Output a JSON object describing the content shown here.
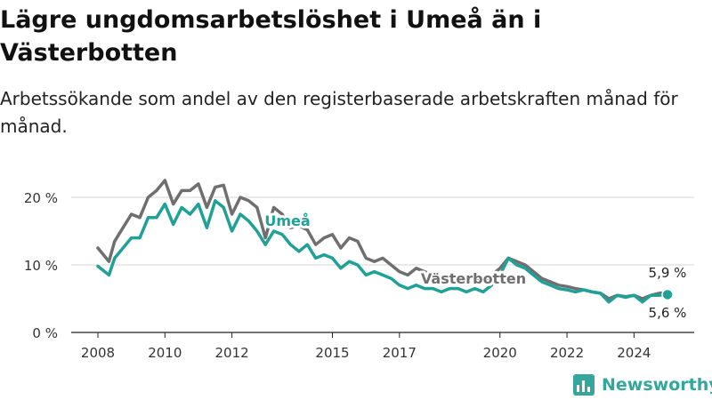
{
  "title": "Lägre ungdomsarbetslöshet i Umeå än i Västerbotten",
  "subtitle": "Arbetssökande som andel av den registerbaserade arbetskraften månad för månad.",
  "brand": {
    "name": "Newsworthy",
    "icon": "newsworthy-logo-icon",
    "color": "#34a79c"
  },
  "chart_data": {
    "type": "line",
    "title": "Lägre ungdomsarbetslöshet i Umeå än i Västerbotten",
    "subtitle": "Arbetssökande som andel av den registerbaserade arbetskraften månad för månad.",
    "x_ticks": [
      2008,
      2010,
      2012,
      2015,
      2017,
      2020,
      2022,
      2024
    ],
    "y_ticks": [
      0,
      10,
      20
    ],
    "y_tick_labels": [
      "0 %",
      "10 %",
      "20 %"
    ],
    "ylim": [
      0,
      22
    ],
    "grid": true,
    "legend": "inline labels",
    "series": [
      {
        "name": "Västerbotten",
        "color": "#6f6f6f",
        "end_label": "5,9 %",
        "x": [
          2008.0,
          2008.33,
          2008.5,
          2008.75,
          2009.0,
          2009.25,
          2009.5,
          2009.75,
          2010.0,
          2010.25,
          2010.5,
          2010.75,
          2011.0,
          2011.25,
          2011.5,
          2011.75,
          2012.0,
          2012.25,
          2012.5,
          2012.75,
          2013.0,
          2013.25,
          2013.5,
          2013.75,
          2014.0,
          2014.25,
          2014.5,
          2014.75,
          2015.0,
          2015.25,
          2015.5,
          2015.75,
          2016.0,
          2016.25,
          2016.5,
          2016.75,
          2017.0,
          2017.25,
          2017.5,
          2017.75,
          2018.0,
          2018.25,
          2018.5,
          2018.75,
          2019.0,
          2019.25,
          2019.5,
          2019.75,
          2020.0,
          2020.25,
          2020.5,
          2020.75,
          2021.0,
          2021.25,
          2021.5,
          2021.75,
          2022.0,
          2022.25,
          2022.5,
          2022.75,
          2023.0,
          2023.25,
          2023.5,
          2023.75,
          2024.0,
          2024.25,
          2024.5,
          2024.75,
          2025.0
        ],
        "values": [
          12.5,
          10.5,
          13.5,
          15.5,
          17.5,
          17.0,
          20.0,
          21.0,
          22.5,
          19.0,
          21.0,
          21.0,
          22.0,
          18.5,
          21.5,
          21.8,
          17.5,
          20.0,
          19.5,
          18.5,
          14.0,
          18.5,
          17.5,
          15.5,
          15.8,
          15.2,
          13.0,
          14.0,
          14.5,
          12.5,
          14.0,
          13.5,
          11.0,
          10.5,
          11.0,
          10.0,
          9.0,
          8.5,
          9.5,
          9.0,
          8.5,
          8.0,
          7.5,
          8.0,
          7.5,
          8.0,
          7.5,
          8.5,
          9.5,
          11.0,
          10.5,
          10.0,
          9.0,
          8.0,
          7.5,
          7.0,
          6.8,
          6.5,
          6.3,
          6.0,
          5.8,
          5.0,
          5.5,
          5.3,
          5.5,
          5.0,
          5.5,
          5.8,
          5.9
        ]
      },
      {
        "name": "Umeå",
        "color": "#1fa197",
        "end_label": "5,6 %",
        "x": [
          2008.0,
          2008.33,
          2008.5,
          2008.75,
          2009.0,
          2009.25,
          2009.5,
          2009.75,
          2010.0,
          2010.25,
          2010.5,
          2010.75,
          2011.0,
          2011.25,
          2011.5,
          2011.75,
          2012.0,
          2012.25,
          2012.5,
          2012.75,
          2013.0,
          2013.25,
          2013.5,
          2013.75,
          2014.0,
          2014.25,
          2014.5,
          2014.75,
          2015.0,
          2015.25,
          2015.5,
          2015.75,
          2016.0,
          2016.25,
          2016.5,
          2016.75,
          2017.0,
          2017.25,
          2017.5,
          2017.75,
          2018.0,
          2018.25,
          2018.5,
          2018.75,
          2019.0,
          2019.25,
          2019.5,
          2019.75,
          2020.0,
          2020.25,
          2020.5,
          2020.75,
          2021.0,
          2021.25,
          2021.5,
          2021.75,
          2022.0,
          2022.25,
          2022.5,
          2022.75,
          2023.0,
          2023.25,
          2023.5,
          2023.75,
          2024.0,
          2024.25,
          2024.5,
          2024.75,
          2025.0
        ],
        "values": [
          9.8,
          8.5,
          11.0,
          12.5,
          14.0,
          14.0,
          17.0,
          17.0,
          19.0,
          16.0,
          18.5,
          17.5,
          19.0,
          15.5,
          19.5,
          18.5,
          15.0,
          17.5,
          16.5,
          15.0,
          13.0,
          15.0,
          14.5,
          13.0,
          12.0,
          13.0,
          11.0,
          11.5,
          11.0,
          9.5,
          10.5,
          10.0,
          8.5,
          9.0,
          8.5,
          8.0,
          7.0,
          6.5,
          7.0,
          6.5,
          6.5,
          6.0,
          6.5,
          6.5,
          6.0,
          6.5,
          6.0,
          7.0,
          8.5,
          11.0,
          10.0,
          9.5,
          8.5,
          7.5,
          7.0,
          6.5,
          6.3,
          6.0,
          6.3,
          6.0,
          5.8,
          4.5,
          5.5,
          5.2,
          5.5,
          4.5,
          5.5,
          5.5,
          5.6
        ]
      }
    ]
  }
}
